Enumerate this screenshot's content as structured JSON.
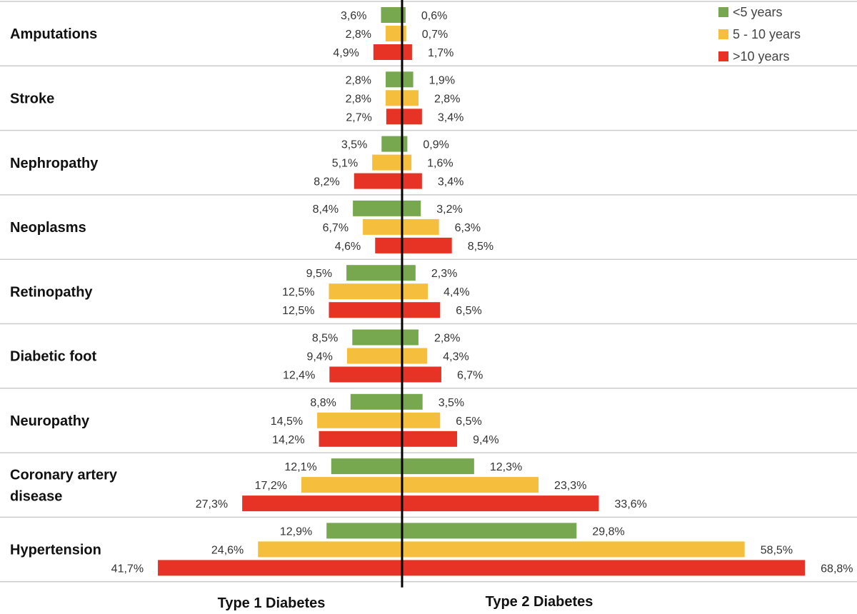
{
  "chart_data": {
    "type": "bar",
    "orientation": "horizontal-butterfly",
    "left_title": "Type 1 Diabetes",
    "right_title": "Type 2 Diabetes",
    "legend_position": "top-right",
    "series": [
      {
        "name": "<5 years",
        "color": "#77a84f"
      },
      {
        "name": "5 - 10 years",
        "color": "#f5be3c"
      },
      {
        "name": ">10 years",
        "color": "#e73325"
      }
    ],
    "categories": [
      {
        "name": [
          "Amputations"
        ],
        "type1": [
          3.6,
          2.8,
          4.9
        ],
        "type2": [
          0.6,
          0.7,
          1.7
        ],
        "type1_labels": [
          "3,6%",
          "2,8%",
          "4,9%"
        ],
        "type2_labels": [
          "0,6%",
          "0,7%",
          "1,7%"
        ]
      },
      {
        "name": [
          "Stroke"
        ],
        "type1": [
          2.8,
          2.8,
          2.7
        ],
        "type2": [
          1.9,
          2.8,
          3.4
        ],
        "type1_labels": [
          "2,8%",
          "2,8%",
          "2,7%"
        ],
        "type2_labels": [
          "1,9%",
          "2,8%",
          "3,4%"
        ]
      },
      {
        "name": [
          "Nephropathy"
        ],
        "type1": [
          3.5,
          5.1,
          8.2
        ],
        "type2": [
          0.9,
          1.6,
          3.4
        ],
        "type1_labels": [
          "3,5%",
          "5,1%",
          "8,2%"
        ],
        "type2_labels": [
          "0,9%",
          "1,6%",
          "3,4%"
        ]
      },
      {
        "name": [
          "Neoplasms"
        ],
        "type1": [
          8.4,
          6.7,
          4.6
        ],
        "type2": [
          3.2,
          6.3,
          8.5
        ],
        "type1_labels": [
          "8,4%",
          "6,7%",
          "4,6%"
        ],
        "type2_labels": [
          "3,2%",
          "6,3%",
          "8,5%"
        ]
      },
      {
        "name": [
          "Retinopathy"
        ],
        "type1": [
          9.5,
          12.5,
          12.5
        ],
        "type2": [
          2.3,
          4.4,
          6.5
        ],
        "type1_labels": [
          "9,5%",
          "12,5%",
          "12,5%"
        ],
        "type2_labels": [
          "2,3%",
          "4,4%",
          "6,5%"
        ]
      },
      {
        "name": [
          "Diabetic foot"
        ],
        "type1": [
          8.5,
          9.4,
          12.4
        ],
        "type2": [
          2.8,
          4.3,
          6.7
        ],
        "type1_labels": [
          "8,5%",
          "9,4%",
          "12,4%"
        ],
        "type2_labels": [
          "2,8%",
          "4,3%",
          "6,7%"
        ]
      },
      {
        "name": [
          "Neuropathy"
        ],
        "type1": [
          8.8,
          14.5,
          14.2
        ],
        "type2": [
          3.5,
          6.5,
          9.4
        ],
        "type1_labels": [
          "8,8%",
          "14,5%",
          "14,2%"
        ],
        "type2_labels": [
          "3,5%",
          "6,5%",
          "9,4%"
        ]
      },
      {
        "name": [
          "Coronary artery",
          "disease"
        ],
        "type1": [
          12.1,
          17.2,
          27.3
        ],
        "type2": [
          12.3,
          23.3,
          33.6
        ],
        "type1_labels": [
          "12,1%",
          "17,2%",
          "27,3%"
        ],
        "type2_labels": [
          "12,3%",
          "23,3%",
          "33,6%"
        ]
      },
      {
        "name": [
          "Hypertension"
        ],
        "type1": [
          12.9,
          24.6,
          41.7
        ],
        "type2": [
          29.8,
          58.5,
          68.8
        ],
        "type1_labels": [
          "12,9%",
          "24,6%",
          "41,7%"
        ],
        "type2_labels": [
          "29,8%",
          "58,5%",
          "68,8%"
        ]
      }
    ]
  }
}
